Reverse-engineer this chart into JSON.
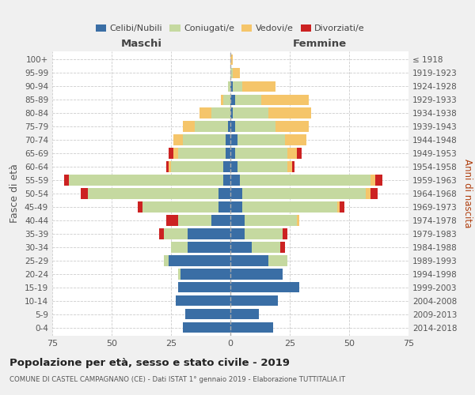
{
  "age_groups": [
    "0-4",
    "5-9",
    "10-14",
    "15-19",
    "20-24",
    "25-29",
    "30-34",
    "35-39",
    "40-44",
    "45-49",
    "50-54",
    "55-59",
    "60-64",
    "65-69",
    "70-74",
    "75-79",
    "80-84",
    "85-89",
    "90-94",
    "95-99",
    "100+"
  ],
  "birth_years": [
    "2014-2018",
    "2009-2013",
    "2004-2008",
    "1999-2003",
    "1994-1998",
    "1989-1993",
    "1984-1988",
    "1979-1983",
    "1974-1978",
    "1969-1973",
    "1964-1968",
    "1959-1963",
    "1954-1958",
    "1949-1953",
    "1944-1948",
    "1939-1943",
    "1934-1938",
    "1929-1933",
    "1924-1928",
    "1919-1923",
    "≤ 1918"
  ],
  "colors": {
    "celibi": "#3a6ea5",
    "coniugati": "#c5d9a0",
    "vedovi": "#f5c56a",
    "divorziati": "#cc2222"
  },
  "male": {
    "celibi": [
      20,
      19,
      23,
      22,
      21,
      26,
      18,
      18,
      8,
      5,
      5,
      3,
      3,
      2,
      2,
      1,
      0,
      0,
      0,
      0,
      0
    ],
    "coniugati": [
      0,
      0,
      0,
      0,
      1,
      2,
      7,
      10,
      14,
      32,
      55,
      65,
      22,
      20,
      18,
      14,
      8,
      3,
      1,
      0,
      0
    ],
    "vedovi": [
      0,
      0,
      0,
      0,
      0,
      0,
      0,
      0,
      0,
      0,
      0,
      0,
      1,
      2,
      4,
      5,
      5,
      1,
      0,
      0,
      0
    ],
    "divorziati": [
      0,
      0,
      0,
      0,
      0,
      0,
      0,
      2,
      5,
      2,
      3,
      2,
      1,
      2,
      0,
      0,
      0,
      0,
      0,
      0,
      0
    ]
  },
  "female": {
    "celibi": [
      18,
      12,
      20,
      29,
      22,
      16,
      9,
      6,
      6,
      5,
      5,
      4,
      3,
      2,
      3,
      2,
      1,
      2,
      1,
      0,
      0
    ],
    "coniugati": [
      0,
      0,
      0,
      0,
      0,
      8,
      12,
      16,
      22,
      40,
      52,
      55,
      21,
      22,
      20,
      17,
      15,
      11,
      4,
      1,
      0
    ],
    "vedovi": [
      0,
      0,
      0,
      0,
      0,
      0,
      0,
      0,
      1,
      1,
      2,
      2,
      2,
      4,
      9,
      14,
      18,
      20,
      14,
      3,
      1
    ],
    "divorziati": [
      0,
      0,
      0,
      0,
      0,
      0,
      2,
      2,
      0,
      2,
      3,
      3,
      1,
      2,
      0,
      0,
      0,
      0,
      0,
      0,
      0
    ]
  },
  "xlim": 75,
  "title": "Popolazione per età, sesso e stato civile - 2019",
  "subtitle": "COMUNE DI CASTEL CAMPAGNANO (CE) - Dati ISTAT 1° gennaio 2019 - Elaborazione TUTTITALIA.IT",
  "ylabel_left": "Fasce di età",
  "ylabel_right": "Anni di nascita",
  "xlabel_left": "Maschi",
  "xlabel_right": "Femmine",
  "bg_color": "#f0f0f0",
  "plot_bg": "#ffffff"
}
